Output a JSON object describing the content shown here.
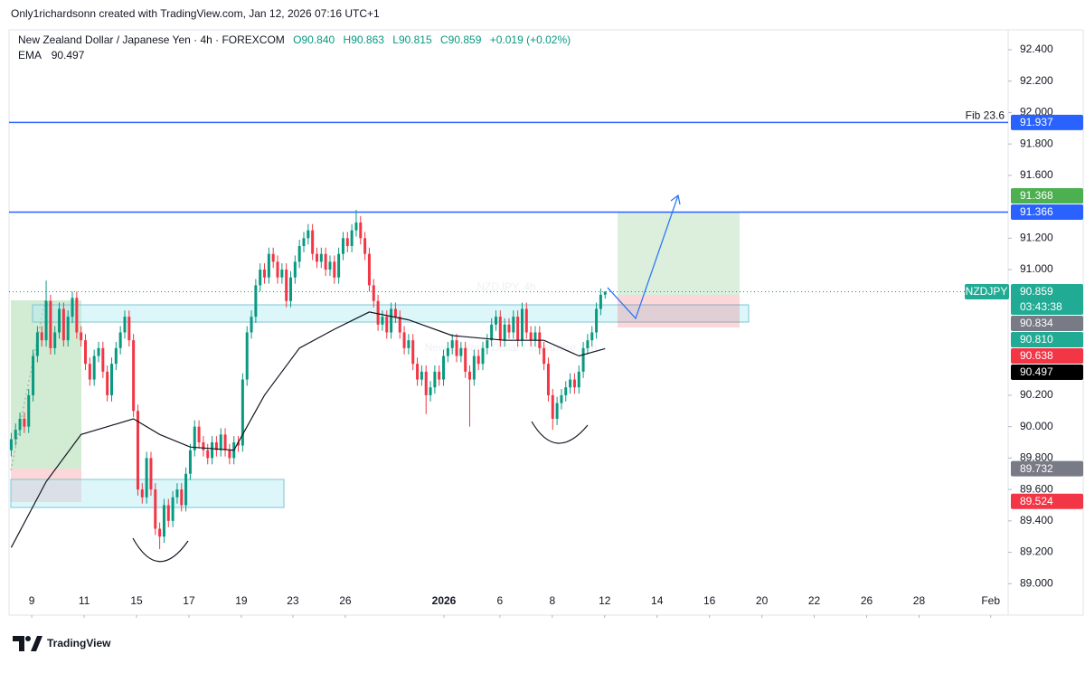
{
  "header": {
    "credit": "Only1richardsonn created with TradingView.com, Jan 12, 2026 07:16 UTC+1"
  },
  "chart_data": {
    "type": "candlestick",
    "title": "New Zealand Dollar / Japanese Yen · 4h · FOREXCOM",
    "ohlc_legend": [
      "O90.840",
      "H90.863",
      "L90.815",
      "C90.859",
      "+0.019 (+0.02%)"
    ],
    "watermark": "NZDJPY, 4h",
    "watermark_subtitle": "New Zealand Dollar / Japanese Yen",
    "up_color": "#089981",
    "down_color": "#f23645",
    "open": [
      89.85,
      89.92,
      89.98,
      90.05,
      90.0,
      90.2,
      90.45,
      90.6,
      90.55,
      90.8,
      90.5,
      90.6,
      90.75,
      90.55,
      90.7,
      90.82,
      90.6,
      90.55,
      90.4,
      90.3,
      90.45,
      90.5,
      90.35,
      90.2,
      90.4,
      90.5,
      90.6,
      90.7,
      90.55,
      90.1,
      89.6,
      89.55,
      89.8,
      89.6,
      89.35,
      89.3,
      89.5,
      89.4,
      89.55,
      89.6,
      89.5,
      89.7,
      89.85,
      90.0,
      89.9,
      89.85,
      89.8,
      89.9,
      89.85,
      89.95,
      89.85,
      89.8,
      89.9,
      89.88,
      90.3,
      90.6,
      90.7,
      90.9,
      91.0,
      90.95,
      91.1,
      91.05,
      90.95,
      91.0,
      90.8,
      90.95,
      91.05,
      91.15,
      91.2,
      91.25,
      91.1,
      91.05,
      91.1,
      91.0,
      91.05,
      90.95,
      91.1,
      91.2,
      91.15,
      91.25,
      91.3,
      91.2,
      91.1,
      90.9,
      90.8,
      90.65,
      90.7,
      90.6,
      90.75,
      90.7,
      90.6,
      90.5,
      90.55,
      90.4,
      90.3,
      90.35,
      90.2,
      90.25,
      90.35,
      90.3,
      90.45,
      90.5,
      90.55,
      90.45,
      90.5,
      90.35,
      90.3,
      90.45,
      90.4,
      90.5,
      90.55,
      90.65,
      90.7,
      90.55,
      90.65,
      90.6,
      90.7,
      90.55,
      90.75,
      90.6,
      90.55,
      90.6,
      90.5,
      90.4,
      90.2,
      90.05,
      90.15,
      90.2,
      90.25,
      90.3,
      90.25,
      90.35,
      90.5,
      90.55,
      90.6,
      90.75,
      90.84
    ],
    "high": [
      89.96,
      90.02,
      90.09,
      90.09,
      90.24,
      90.49,
      90.64,
      90.64,
      90.93,
      90.84,
      90.64,
      90.79,
      90.79,
      90.74,
      90.86,
      90.86,
      90.64,
      90.59,
      90.44,
      90.49,
      90.54,
      90.54,
      90.39,
      90.44,
      90.54,
      90.64,
      90.74,
      90.74,
      90.59,
      90.14,
      89.64,
      89.84,
      89.84,
      89.64,
      89.39,
      89.54,
      89.54,
      89.59,
      89.64,
      89.64,
      89.74,
      89.89,
      90.04,
      90.04,
      89.94,
      89.89,
      89.94,
      89.94,
      89.99,
      89.99,
      89.89,
      89.94,
      89.94,
      90.34,
      90.64,
      90.74,
      90.94,
      91.04,
      91.04,
      91.14,
      91.14,
      91.09,
      91.04,
      91.04,
      90.99,
      91.09,
      91.19,
      91.24,
      91.29,
      91.29,
      91.14,
      91.14,
      91.14,
      91.09,
      91.09,
      91.14,
      91.24,
      91.24,
      91.29,
      91.38,
      91.34,
      91.24,
      91.14,
      90.94,
      90.84,
      90.74,
      90.74,
      90.79,
      90.79,
      90.74,
      90.64,
      90.59,
      90.59,
      90.44,
      90.39,
      90.39,
      90.29,
      90.39,
      90.39,
      90.49,
      90.54,
      90.59,
      90.59,
      90.54,
      90.54,
      90.39,
      90.49,
      90.49,
      90.54,
      90.59,
      90.69,
      90.74,
      90.74,
      90.69,
      90.69,
      90.74,
      90.74,
      90.79,
      90.79,
      90.64,
      90.64,
      90.64,
      90.54,
      90.44,
      90.24,
      90.19,
      90.24,
      90.29,
      90.34,
      90.34,
      90.39,
      90.54,
      90.59,
      90.64,
      90.79,
      90.88,
      90.863
    ],
    "low": [
      89.81,
      89.88,
      89.94,
      89.96,
      89.96,
      90.16,
      90.41,
      90.51,
      90.51,
      90.46,
      90.46,
      90.56,
      90.51,
      90.51,
      90.66,
      90.56,
      90.51,
      90.36,
      90.26,
      90.26,
      90.41,
      90.31,
      90.16,
      90.16,
      90.36,
      90.46,
      90.56,
      90.51,
      90.06,
      89.56,
      89.51,
      89.51,
      89.56,
      89.31,
      89.22,
      89.26,
      89.36,
      89.36,
      89.51,
      89.46,
      89.46,
      89.66,
      89.81,
      89.86,
      89.81,
      89.76,
      89.76,
      89.81,
      89.81,
      89.81,
      89.76,
      89.76,
      89.84,
      89.84,
      90.26,
      90.56,
      90.66,
      90.86,
      90.91,
      90.91,
      91.01,
      90.91,
      90.91,
      90.76,
      90.76,
      90.91,
      91.01,
      91.11,
      91.16,
      91.06,
      91.01,
      91.01,
      90.96,
      90.96,
      90.91,
      90.91,
      91.06,
      91.11,
      91.11,
      91.21,
      91.16,
      91.06,
      90.86,
      90.76,
      90.61,
      90.61,
      90.56,
      90.56,
      90.66,
      90.56,
      90.46,
      90.46,
      90.36,
      90.26,
      90.26,
      90.08,
      90.16,
      90.21,
      90.26,
      90.26,
      90.41,
      90.46,
      90.41,
      90.41,
      90.31,
      90.0,
      90.26,
      90.36,
      90.36,
      90.46,
      90.51,
      90.61,
      90.51,
      90.51,
      90.56,
      90.56,
      90.51,
      90.51,
      90.56,
      90.51,
      90.51,
      90.46,
      90.36,
      90.16,
      89.98,
      90.01,
      90.11,
      90.16,
      90.21,
      90.21,
      90.21,
      90.31,
      90.46,
      90.51,
      90.56,
      90.71,
      90.815
    ],
    "close": [
      89.92,
      89.98,
      90.05,
      90.0,
      90.2,
      90.45,
      90.6,
      90.55,
      90.8,
      90.5,
      90.6,
      90.75,
      90.55,
      90.7,
      90.82,
      90.6,
      90.55,
      90.4,
      90.3,
      90.45,
      90.5,
      90.35,
      90.2,
      90.4,
      90.5,
      90.6,
      90.7,
      90.55,
      90.1,
      89.6,
      89.55,
      89.8,
      89.6,
      89.35,
      89.3,
      89.5,
      89.4,
      89.55,
      89.6,
      89.5,
      89.7,
      89.85,
      90.0,
      89.9,
      89.85,
      89.8,
      89.9,
      89.85,
      89.95,
      89.85,
      89.8,
      89.9,
      89.88,
      90.3,
      90.6,
      90.7,
      90.9,
      91.0,
      90.95,
      91.1,
      91.05,
      90.95,
      91.0,
      90.8,
      90.95,
      91.05,
      91.15,
      91.2,
      91.25,
      91.1,
      91.05,
      91.1,
      91.0,
      91.05,
      90.95,
      91.1,
      91.2,
      91.15,
      91.25,
      91.3,
      91.2,
      91.1,
      90.9,
      90.8,
      90.65,
      90.7,
      90.6,
      90.75,
      90.7,
      90.6,
      90.5,
      90.55,
      90.4,
      90.3,
      90.35,
      90.2,
      90.25,
      90.35,
      90.3,
      90.45,
      90.5,
      90.55,
      90.45,
      90.5,
      90.35,
      90.3,
      90.45,
      90.4,
      90.5,
      90.55,
      90.65,
      90.7,
      90.55,
      90.65,
      90.6,
      90.7,
      90.55,
      90.75,
      90.6,
      90.55,
      90.6,
      90.5,
      90.4,
      90.2,
      90.05,
      90.15,
      90.2,
      90.25,
      90.3,
      90.25,
      90.35,
      90.5,
      90.55,
      90.6,
      90.75,
      90.84,
      90.859
    ],
    "series": [
      {
        "name": "EMA",
        "color": "#131722",
        "x": [
          0,
          8,
          16,
          22,
          28,
          34,
          41,
          51,
          58,
          66,
          74,
          82,
          91,
          101,
          113,
          122,
          130,
          136
        ],
        "values": [
          89.23,
          89.65,
          89.95,
          90.0,
          90.05,
          89.95,
          89.87,
          89.85,
          90.2,
          90.5,
          90.62,
          90.73,
          90.68,
          90.58,
          90.55,
          90.55,
          90.45,
          90.497
        ]
      }
    ],
    "xlim": [
      -0.5,
      228.3
    ],
    "xticks": [
      {
        "value": 4.7,
        "label": "9"
      },
      {
        "value": 16.7,
        "label": "11"
      },
      {
        "value": 28.7,
        "label": "15"
      },
      {
        "value": 40.7,
        "label": "17"
      },
      {
        "value": 52.7,
        "label": "19"
      },
      {
        "value": 64.5,
        "label": "23"
      },
      {
        "value": 76.5,
        "label": "26"
      },
      {
        "value": 99.1,
        "label": "2026"
      },
      {
        "value": 111.9,
        "label": "6"
      },
      {
        "value": 123.9,
        "label": "8"
      },
      {
        "value": 135.9,
        "label": "12"
      },
      {
        "value": 147.9,
        "label": "14"
      },
      {
        "value": 159.9,
        "label": "16"
      },
      {
        "value": 171.9,
        "label": "20"
      },
      {
        "value": 183.9,
        "label": "22"
      },
      {
        "value": 195.9,
        "label": "26"
      },
      {
        "value": 207.9,
        "label": "28"
      },
      {
        "value": 224.3,
        "label": "Feb"
      }
    ],
    "ylim": [
      88.8,
      92.515
    ],
    "yticks": [
      {
        "value": 92.4,
        "label": "92.400"
      },
      {
        "value": 92.2,
        "label": "92.200"
      },
      {
        "value": 92.0,
        "label": "92.000"
      },
      {
        "value": 91.8,
        "label": "91.800"
      },
      {
        "value": 91.6,
        "label": "91.600"
      },
      {
        "value": 91.2,
        "label": "91.200"
      },
      {
        "value": 91.0,
        "label": "91.000"
      },
      {
        "value": 90.2,
        "label": "90.200"
      },
      {
        "value": 90.0,
        "label": "90.000"
      },
      {
        "value": 89.8,
        "label": "89.800"
      },
      {
        "value": 89.6,
        "label": "89.600"
      },
      {
        "value": 89.4,
        "label": "89.400"
      },
      {
        "value": 89.2,
        "label": "89.200"
      },
      {
        "value": 89.0,
        "label": "89.000"
      }
    ],
    "hlines": [
      {
        "value": 91.937,
        "label": "Fib 23.6",
        "color": "#2962ff"
      },
      {
        "value": 91.366,
        "color": "#2962ff"
      }
    ],
    "price_labels": [
      {
        "value": 91.937,
        "label": "91.937",
        "color": "#2962ff"
      },
      {
        "value": 91.366,
        "label": "91.366",
        "color": "#2962ff"
      },
      {
        "value": 91.368,
        "label": "91.368",
        "color": "#4caf50"
      },
      {
        "value": 90.859,
        "label": "90.859",
        "color": "#22ab94",
        "symbol": "NZDJPY",
        "countdown": "03:43:38"
      },
      {
        "value": 90.834,
        "label": "90.834",
        "color": "#787b86"
      },
      {
        "value": 90.81,
        "label": "90.810",
        "color": "#22ab94"
      },
      {
        "value": 90.638,
        "label": "90.638",
        "color": "#f23645"
      },
      {
        "value": 90.497,
        "label": "90.497",
        "color": "#000000"
      },
      {
        "value": 89.732,
        "label": "89.732",
        "color": "#787b86"
      },
      {
        "value": 89.524,
        "label": "89.524",
        "color": "#f23645"
      }
    ]
  },
  "footer": {
    "brand": "TradingView"
  }
}
